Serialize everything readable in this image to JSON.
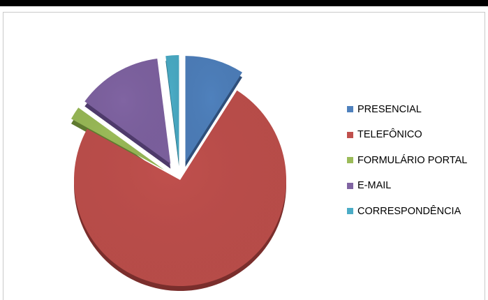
{
  "chart_data": {
    "type": "pie",
    "style": "3d-exploded",
    "legend_position": "right",
    "categories": [
      "PRESENCIAL",
      "TELEFÔNICO",
      "FORMULÁRIO PORTAL",
      "E-MAIL",
      "CORRESPONDÊNCIA"
    ],
    "values": [
      9,
      74,
      2,
      13,
      2
    ],
    "colors": [
      "#4f81bd",
      "#c0504d",
      "#9bbb59",
      "#8064a2",
      "#4bacc6"
    ],
    "dark_colors": [
      "#2f4f7a",
      "#7a2e2c",
      "#5f7a30",
      "#4e3a6b",
      "#2b7385"
    ]
  }
}
